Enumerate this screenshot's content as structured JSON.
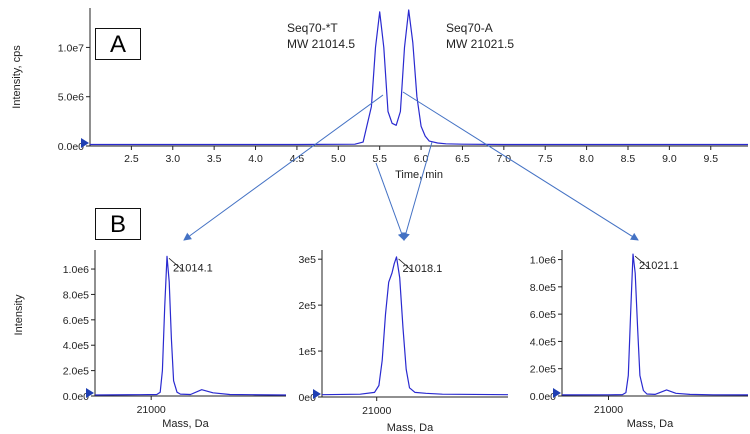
{
  "panel_labels": {
    "a": "A",
    "b": "B"
  },
  "colors": {
    "trace": "#2a2ad0",
    "axis": "#222222",
    "arrow": "#4472c4",
    "marker": "#1f3fb3"
  },
  "chart_data": [
    {
      "id": "chromatogram",
      "type": "line",
      "xlabel": "Time, min",
      "ylabel": "Intensity, cps",
      "xlim": [
        2.0,
        9.95
      ],
      "ylim": [
        0,
        14000000.0
      ],
      "xticks": [
        2.5,
        3.0,
        3.5,
        4.0,
        4.5,
        5.0,
        5.5,
        6.0,
        6.5,
        7.0,
        7.5,
        8.0,
        8.5,
        9.0,
        9.5
      ],
      "xtick_labels": [
        "2.5",
        "3.0",
        "3.5",
        "4.0",
        "4.5",
        "5.0",
        "5.5",
        "6.0",
        "6.5",
        "7.0",
        "7.5",
        "8.0",
        "8.5",
        "9.0",
        "9.5"
      ],
      "yticks": [
        0,
        5000000.0,
        10000000.0
      ],
      "ytick_labels": [
        "0.0e0",
        "5.0e6",
        "1.0e7"
      ],
      "x": [
        2.0,
        4.5,
        5.2,
        5.3,
        5.4,
        5.45,
        5.5,
        5.55,
        5.6,
        5.65,
        5.7,
        5.75,
        5.8,
        5.85,
        5.9,
        5.95,
        6.0,
        6.05,
        6.1,
        6.2,
        6.3,
        6.5,
        7.0,
        9.95
      ],
      "y": [
        150000.0,
        150000.0,
        180000.0,
        400000.0,
        4000000.0,
        10000000.0,
        13600000.0,
        10000000.0,
        3500000.0,
        2300000.0,
        2100000.0,
        3500000.0,
        10000000.0,
        13800000.0,
        10500000.0,
        5000000.0,
        2000000.0,
        1000000.0,
        500000.0,
        300000.0,
        220000.0,
        180000.0,
        150000.0,
        150000.0
      ],
      "annotations": [
        {
          "name": "Seq70-*T",
          "mw": "MW 21014.5"
        },
        {
          "name": "Seq70-A",
          "mw": "MW 21021.5"
        }
      ]
    },
    {
      "id": "spectrum-1",
      "type": "line",
      "xlabel": "Mass, Da",
      "ylabel": "Intensity",
      "xlim": [
        20950,
        21120
      ],
      "ylim": [
        0,
        1150000.0
      ],
      "xticks": [
        21000
      ],
      "xtick_labels": [
        "21000"
      ],
      "yticks": [
        0,
        200000.0,
        400000.0,
        600000.0,
        800000.0,
        1000000.0
      ],
      "ytick_labels": [
        "0.0e0",
        "2.0e5",
        "4.0e5",
        "6.0e5",
        "8.0e5",
        "1.0e6"
      ],
      "x": [
        20950,
        20990,
        21005,
        21008,
        21010,
        21012,
        21014.1,
        21016,
        21018,
        21020,
        21023,
        21026,
        21035,
        21045,
        21055,
        21070,
        21090,
        21120
      ],
      "y": [
        8000,
        10000,
        12000,
        30000,
        200000,
        700000,
        1100000,
        900000,
        450000,
        120000,
        30000,
        15000,
        12000,
        50000,
        25000,
        12000,
        10000,
        8000
      ],
      "peak_label": "21014.1"
    },
    {
      "id": "spectrum-2",
      "type": "line",
      "xlabel": "Mass, Da",
      "ylabel": "",
      "xlim": [
        20950,
        21120
      ],
      "ylim": [
        0,
        320000.0
      ],
      "xticks": [
        21000
      ],
      "xtick_labels": [
        "21000"
      ],
      "yticks": [
        0,
        100000.0,
        200000.0,
        300000.0
      ],
      "ytick_labels": [
        "0e0",
        "1e5",
        "2e5",
        "3e5"
      ],
      "x": [
        20950,
        20985,
        20998,
        21002,
        21005,
        21008,
        21011,
        21014,
        21016,
        21018.1,
        21021,
        21024,
        21027,
        21030,
        21035,
        21045,
        21060,
        21120
      ],
      "y": [
        5000,
        6000,
        10000,
        25000,
        80000,
        180000,
        250000,
        270000,
        290000,
        305000,
        260000,
        150000,
        60000,
        20000,
        10000,
        8000,
        6000,
        5000
      ],
      "peak_label": "21018.1"
    },
    {
      "id": "spectrum-3",
      "type": "line",
      "xlabel": "Mass, Da",
      "ylabel": "",
      "xlim": [
        20960,
        21120
      ],
      "ylim": [
        0,
        1070000.0
      ],
      "xticks": [
        21000
      ],
      "xtick_labels": [
        "21000"
      ],
      "yticks": [
        0,
        200000.0,
        400000.0,
        600000.0,
        800000.0,
        1000000.0
      ],
      "ytick_labels": [
        "0.0e0",
        "2.0e5",
        "4.0e5",
        "6.0e5",
        "8.0e5",
        "1.0e6"
      ],
      "x": [
        20960,
        21000,
        21012,
        21015,
        21017,
        21019,
        21021.1,
        21023,
        21025,
        21027,
        21030,
        21033,
        21040,
        21050,
        21058,
        21070,
        21090,
        21120
      ],
      "y": [
        8000,
        9000,
        10000,
        25000,
        150000,
        600000,
        1040000,
        900000,
        500000,
        150000,
        40000,
        15000,
        12000,
        45000,
        20000,
        12000,
        9000,
        8000
      ],
      "peak_label": "21021.1"
    }
  ]
}
